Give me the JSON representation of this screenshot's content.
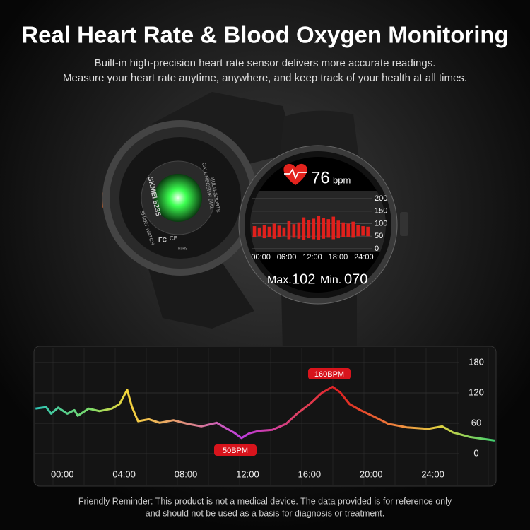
{
  "header": {
    "title": "Real Heart Rate & Blood Oxygen Monitoring",
    "subtitle_lines": [
      "Built-in high-precision heart rate sensor delivers more accurate readings.",
      "Measure your heart rate anytime, anywhere, and keep track of your health at all times."
    ]
  },
  "watch_back": {
    "model": "SKMEI 5235",
    "product": "SMART WATCH",
    "features": [
      "CALL RECEIVE DIAL",
      "MULTI-SPORTS"
    ],
    "marks": [
      "FC",
      "CE",
      "RoHS"
    ]
  },
  "watch_screen": {
    "heart_rate": "76",
    "unit": "bpm",
    "max_label": "Max.",
    "max": "102",
    "min_label": "Min.",
    "min": "070"
  },
  "chart_data": [
    {
      "type": "range",
      "color": "#e0201c",
      "x": [
        -1.5,
        -0.35,
        0.8,
        1.95,
        3.1,
        4.25,
        5.4,
        6.55,
        7.7,
        8.85,
        10,
        11.15,
        12.3,
        13.45,
        14.6,
        15.75,
        16.9,
        18.05,
        19.2,
        20.35,
        21.5,
        22.65,
        23.8,
        24.95
      ],
      "high": [
        90,
        85,
        95,
        88,
        100,
        92,
        85,
        110,
        98,
        105,
        125,
        115,
        120,
        130,
        122,
        118,
        128,
        112,
        105,
        100,
        108,
        95,
        90,
        88
      ],
      "low": [
        45,
        50,
        42,
        48,
        40,
        46,
        50,
        38,
        44,
        40,
        35,
        42,
        38,
        36,
        40,
        44,
        38,
        42,
        46,
        48,
        44,
        50,
        52,
        50
      ],
      "xlim": [
        -2,
        26
      ],
      "xticks": [
        {
          "value": 0,
          "label": "00:00"
        },
        {
          "value": 6,
          "label": "06:00"
        },
        {
          "value": 12,
          "label": "12:00"
        },
        {
          "value": 18,
          "label": "18:00"
        },
        {
          "value": 24,
          "label": "24:00"
        }
      ],
      "ylim": [
        0,
        200
      ],
      "yticks": [
        0,
        50,
        100,
        150,
        200
      ],
      "grid": true
    },
    {
      "type": "line",
      "x": [
        -1.74,
        -1.05,
        -0.73,
        -0.27,
        0.32,
        0.78,
        1.0,
        1.7,
        2.4,
        3.2,
        3.7,
        4.2,
        4.5,
        4.9,
        5.6,
        6.3,
        7.2,
        8.1,
        9.0,
        10.0,
        10.5,
        11.1,
        11.6,
        12.1,
        12.7,
        13.6,
        14.5,
        15.2,
        16.1,
        16.8,
        17.5,
        18.0,
        18.6,
        19.3,
        20.2,
        21.1,
        22.3,
        23.7,
        24.6,
        25.3,
        26.4,
        28.0
      ],
      "values": [
        89,
        92,
        79,
        91,
        79,
        86,
        75,
        89,
        84,
        89,
        98,
        126,
        93,
        64,
        68,
        61,
        66,
        59,
        54,
        61,
        52,
        42,
        31,
        40,
        45,
        47,
        59,
        79,
        100,
        120,
        132,
        121,
        98,
        86,
        73,
        59,
        52,
        49,
        54,
        42,
        33,
        26
      ],
      "xlim": [
        -1.75,
        28
      ],
      "xticks": [
        {
          "value": 0,
          "label": "00:00"
        },
        {
          "value": 4,
          "label": "04:00"
        },
        {
          "value": 8,
          "label": "08:00"
        },
        {
          "value": 12,
          "label": "12:00"
        },
        {
          "value": 16,
          "label": "16:00"
        },
        {
          "value": 20,
          "label": "20:00"
        },
        {
          "value": 24,
          "label": "24:00"
        }
      ],
      "ylim": [
        0,
        180
      ],
      "yticks": [
        0,
        60,
        120,
        180
      ],
      "grid": true,
      "annotations": [
        "160BPM",
        "50BPM"
      ]
    }
  ],
  "footer": {
    "lines": [
      "Friendly Reminder: This product is not a medical device. The data provided is for reference only",
      "and should not be used as a basis for diagnosis or treatment."
    ]
  }
}
